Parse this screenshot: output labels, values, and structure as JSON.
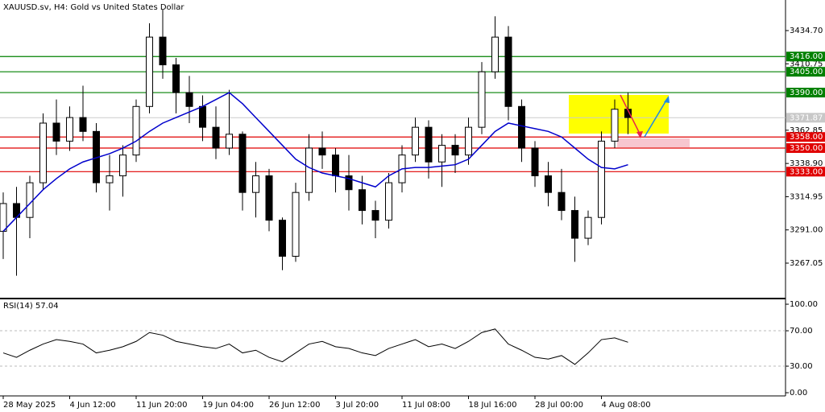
{
  "chart_data": [
    {
      "type": "candlestick",
      "title": "XAUUSD.sv, H4:  Gold vs United States Dollar",
      "categories": [
        "28 May 2025",
        null,
        null,
        null,
        null,
        "4 Jun 12:00",
        null,
        null,
        null,
        null,
        "11 Jun 20:00",
        null,
        null,
        null,
        null,
        "19 Jun 04:00",
        null,
        null,
        null,
        null,
        "26 Jun 12:00",
        null,
        null,
        null,
        null,
        "3 Jul 20:00",
        null,
        null,
        null,
        null,
        "11 Jul 08:00",
        null,
        null,
        null,
        null,
        "18 Jul 16:00",
        null,
        null,
        null,
        null,
        "28 Jul 00:00",
        null,
        null,
        null,
        null,
        "4 Aug 08:00",
        null,
        null
      ],
      "open": [
        3290,
        3310,
        3300,
        3325,
        3368,
        3355,
        3372,
        3362,
        3325,
        3330,
        3345,
        3380,
        3430,
        3410,
        3390,
        3380,
        3365,
        3350,
        3360,
        3318,
        3330,
        3298,
        3272,
        3318,
        3350,
        3345,
        3330,
        3320,
        3305,
        3298,
        3325,
        3345,
        3365,
        3340,
        3352,
        3345,
        3365,
        3405,
        3430,
        3380,
        3350,
        3330,
        3318,
        3305,
        3285,
        3300,
        3355,
        3378
      ],
      "high": [
        3318,
        3322,
        3330,
        3375,
        3385,
        3380,
        3395,
        3368,
        3345,
        3352,
        3385,
        3440,
        3450,
        3415,
        3402,
        3388,
        3380,
        3392,
        3362,
        3340,
        3335,
        3300,
        3325,
        3360,
        3362,
        3350,
        3345,
        3330,
        3312,
        3332,
        3352,
        3372,
        3370,
        3360,
        3360,
        3372,
        3412,
        3445,
        3438,
        3385,
        3355,
        3340,
        3335,
        3315,
        3305,
        3362,
        3385,
        3390
      ],
      "low": [
        3270,
        3258,
        3285,
        3320,
        3345,
        3348,
        3355,
        3318,
        3305,
        3315,
        3340,
        3375,
        3400,
        3375,
        3368,
        3355,
        3342,
        3345,
        3305,
        3300,
        3290,
        3262,
        3268,
        3312,
        3335,
        3318,
        3305,
        3295,
        3285,
        3292,
        3318,
        3340,
        3328,
        3322,
        3332,
        3338,
        3360,
        3400,
        3370,
        3340,
        3322,
        3308,
        3298,
        3268,
        3280,
        3295,
        3350,
        3360
      ],
      "close": [
        3310,
        3300,
        3325,
        3368,
        3355,
        3372,
        3362,
        3325,
        3330,
        3345,
        3380,
        3430,
        3410,
        3390,
        3380,
        3365,
        3350,
        3360,
        3318,
        3330,
        3298,
        3272,
        3318,
        3350,
        3345,
        3330,
        3320,
        3305,
        3298,
        3325,
        3345,
        3365,
        3340,
        3352,
        3345,
        3365,
        3405,
        3430,
        3380,
        3350,
        3330,
        3318,
        3305,
        3285,
        3300,
        3355,
        3378,
        3372
      ],
      "ma": {
        "color": "#0000cc",
        "values": [
          3290,
          3300,
          3310,
          3320,
          3328,
          3335,
          3340,
          3343,
          3346,
          3350,
          3355,
          3362,
          3368,
          3372,
          3376,
          3380,
          3385,
          3390,
          3382,
          3372,
          3362,
          3352,
          3342,
          3336,
          3332,
          3330,
          3328,
          3325,
          3322,
          3330,
          3335,
          3336,
          3336,
          3337,
          3338,
          3342,
          3352,
          3362,
          3368,
          3366,
          3364,
          3362,
          3358,
          3350,
          3342,
          3336,
          3335,
          3338
        ]
      },
      "ylim": [
        3242.1,
        3456.75
      ],
      "yticks": [
        {
          "value": 3434.7,
          "label": "3434.70"
        },
        {
          "value": 3410.75,
          "label": "3410.75"
        },
        {
          "value": 3362.85,
          "label": "3362.85"
        },
        {
          "value": 3338.9,
          "label": "3338.90"
        },
        {
          "value": 3314.95,
          "label": "3314.95"
        },
        {
          "value": 3291,
          "label": "3291.00"
        },
        {
          "value": 3267.05,
          "label": "3267.05"
        }
      ],
      "levels": [
        {
          "value": 3416,
          "label": "3416.00",
          "color": "#008000"
        },
        {
          "value": 3405,
          "label": "3405.00",
          "color": "#008000"
        },
        {
          "value": 3390,
          "label": "3390.00",
          "color": "#008000"
        },
        {
          "value": 3358,
          "label": "3358.00",
          "color": "#e00000"
        },
        {
          "value": 3350,
          "label": "3350.00",
          "color": "#e00000"
        },
        {
          "value": 3333,
          "label": "3333.00",
          "color": "#e00000"
        }
      ],
      "last": {
        "value": 3371.87,
        "label": "3371.87"
      }
    },
    {
      "type": "line",
      "title": "RSI(14) 57.04",
      "color": "#000000",
      "values": [
        45,
        40,
        48,
        55,
        60,
        58,
        55,
        45,
        48,
        52,
        58,
        68,
        65,
        58,
        55,
        52,
        50,
        55,
        45,
        48,
        40,
        35,
        45,
        55,
        58,
        52,
        50,
        45,
        42,
        50,
        55,
        60,
        52,
        55,
        50,
        58,
        68,
        72,
        55,
        48,
        40,
        38,
        42,
        32,
        45,
        60,
        62,
        57.04
      ],
      "ylim": [
        -3.6,
        105.5
      ],
      "yticks": [
        {
          "value": 100,
          "label": "100.00"
        },
        {
          "value": 70,
          "label": "70.00"
        },
        {
          "value": 30,
          "label": "30.00"
        },
        {
          "value": 0,
          "label": "0.00"
        }
      ],
      "levels": [
        70,
        30
      ]
    }
  ]
}
